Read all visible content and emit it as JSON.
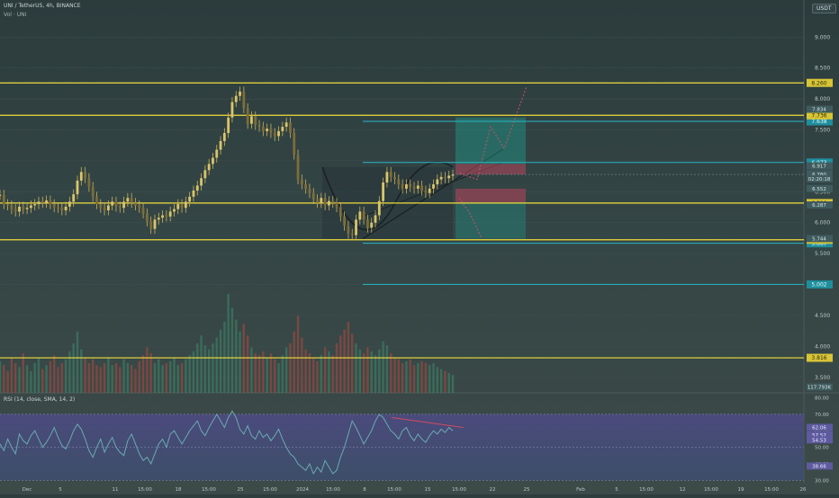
{
  "header": {
    "symbol_line": "UNI / TetherUS, 4h, BINANCE",
    "vol_line": "Vol · UNI",
    "currency_button": "USDT"
  },
  "rsi_header": "RSI (14, close, SMA, 14, 2)",
  "colors": {
    "background": "#2e3e3e",
    "price_level": "#f1de3c",
    "target_level": "#29b7c8",
    "candle": "#c8b25c",
    "rsi_line": "#6aaab0",
    "rsi_band": "#5a4f8e"
  },
  "chart_data": {
    "type": "candlestick",
    "y_axis": [
      "9.000",
      "8.500",
      "8.000",
      "7.500",
      "7.000",
      "6.500",
      "6.000",
      "5.500",
      "5.000",
      "4.500",
      "4.000",
      "3.500"
    ],
    "y_range": [
      3.25,
      9.6
    ],
    "x_ticks": [
      "Dec",
      "5",
      "11",
      "15:00",
      "18",
      "15:00",
      "25",
      "15:00",
      "2024",
      "15:00",
      "8",
      "15:00",
      "15",
      "15:00",
      "22",
      "25",
      "Feb",
      "5",
      "15:00",
      "12",
      "15:00",
      "19",
      "15:00",
      "26"
    ],
    "horizontal_levels": [
      {
        "value": 8.26,
        "label": "8.260",
        "kind": "resistance"
      },
      {
        "value": 7.736,
        "label": "7.736",
        "kind": "resistance"
      },
      {
        "value": 6.318,
        "label": "6.318",
        "kind": "support"
      },
      {
        "value": 5.724,
        "label": "5.724",
        "kind": "support"
      },
      {
        "value": 3.816,
        "label": "3.816",
        "kind": "support"
      }
    ],
    "target_levels": [
      {
        "value": 7.638,
        "label": "7.638"
      },
      {
        "value": 6.973,
        "label": "6.973"
      },
      {
        "value": 5.667,
        "label": "5.667"
      },
      {
        "value": 5.002,
        "label": "5.002"
      }
    ],
    "price_labels": [
      {
        "value": 7.834,
        "label": "7.834"
      },
      {
        "value": 6.917,
        "label": "6.917"
      },
      {
        "value": 6.791,
        "label": "6.791"
      },
      {
        "value": 6.78,
        "label": "6.780"
      },
      {
        "value": 6.71,
        "label": "02:20:18"
      },
      {
        "value": 6.552,
        "label": "6.552"
      },
      {
        "value": 6.287,
        "label": "6.287"
      },
      {
        "value": 5.744,
        "label": "5.744"
      },
      {
        "value": 3.345,
        "label": "117.793K"
      }
    ],
    "price_series": [
      6.45,
      6.3,
      6.28,
      6.22,
      6.18,
      6.26,
      6.22,
      6.24,
      6.28,
      6.3,
      6.34,
      6.32,
      6.36,
      6.3,
      6.25,
      6.24,
      6.2,
      6.26,
      6.34,
      6.46,
      6.68,
      6.82,
      6.72,
      6.58,
      6.42,
      6.3,
      6.24,
      6.2,
      6.28,
      6.34,
      6.26,
      6.24,
      6.34,
      6.4,
      6.32,
      6.28,
      6.24,
      6.15,
      6.02,
      5.9,
      6.05,
      6.08,
      6.12,
      6.1,
      6.18,
      6.22,
      6.3,
      6.24,
      6.34,
      6.42,
      6.52,
      6.6,
      6.72,
      6.85,
      6.95,
      7.05,
      7.18,
      7.32,
      7.45,
      7.7,
      7.95,
      8.05,
      8.12,
      7.85,
      7.6,
      7.72,
      7.58,
      7.55,
      7.48,
      7.52,
      7.45,
      7.4,
      7.48,
      7.55,
      7.62,
      7.45,
      7.1,
      6.7,
      6.62,
      6.55,
      6.48,
      6.38,
      6.32,
      6.4,
      6.28,
      6.35,
      6.32,
      6.25,
      6.1,
      5.95,
      5.82,
      5.8,
      6.05,
      6.18,
      6.05,
      5.92,
      6.0,
      6.12,
      6.35,
      6.65,
      6.82,
      6.74,
      6.7,
      6.62,
      6.55,
      6.62,
      6.58,
      6.55,
      6.6,
      6.52,
      6.48,
      6.55,
      6.62,
      6.7,
      6.74,
      6.72,
      6.76,
      6.78
    ],
    "volume": [
      0.32,
      0.28,
      0.22,
      0.35,
      0.3,
      0.26,
      0.4,
      0.28,
      0.22,
      0.3,
      0.36,
      0.24,
      0.28,
      0.32,
      0.38,
      0.26,
      0.3,
      0.34,
      0.42,
      0.5,
      0.62,
      0.44,
      0.36,
      0.3,
      0.34,
      0.28,
      0.26,
      0.3,
      0.36,
      0.28,
      0.3,
      0.26,
      0.34,
      0.3,
      0.28,
      0.24,
      0.32,
      0.38,
      0.46,
      0.4,
      0.3,
      0.34,
      0.28,
      0.3,
      0.32,
      0.36,
      0.28,
      0.3,
      0.34,
      0.38,
      0.42,
      0.5,
      0.58,
      0.48,
      0.44,
      0.5,
      0.56,
      0.64,
      0.72,
      1.0,
      0.86,
      0.74,
      0.62,
      0.7,
      0.58,
      0.46,
      0.4,
      0.38,
      0.42,
      0.36,
      0.4,
      0.34,
      0.3,
      0.38,
      0.46,
      0.5,
      0.62,
      0.78,
      0.56,
      0.44,
      0.4,
      0.36,
      0.32,
      0.38,
      0.46,
      0.42,
      0.38,
      0.5,
      0.58,
      0.64,
      0.72,
      0.6,
      0.5,
      0.44,
      0.4,
      0.46,
      0.42,
      0.38,
      0.44,
      0.52,
      0.48,
      0.4,
      0.36,
      0.34,
      0.3,
      0.32,
      0.34,
      0.28,
      0.3,
      0.32,
      0.3,
      0.28,
      0.3,
      0.26,
      0.24,
      0.22,
      0.2,
      0.18
    ],
    "rsi": {
      "y_axis": [
        "80.00",
        "70.00",
        "60.00",
        "50.00",
        "40.00",
        "30.00"
      ],
      "y_range": [
        28,
        83
      ],
      "band": [
        30,
        70
      ],
      "labels": [
        {
          "value": 62.06,
          "label": "62.06"
        },
        {
          "value": 57.52,
          "label": "57.52"
        },
        {
          "value": 54.53,
          "label": "54.53"
        },
        {
          "value": 38.66,
          "label": "38.66"
        }
      ],
      "series": [
        52,
        48,
        55,
        50,
        46,
        58,
        54,
        52,
        57,
        60,
        55,
        50,
        53,
        57,
        62,
        56,
        51,
        49,
        54,
        60,
        64,
        61,
        55,
        48,
        44,
        50,
        55,
        47,
        52,
        56,
        50,
        47,
        45,
        54,
        58,
        52,
        46,
        42,
        44,
        40,
        46,
        52,
        55,
        50,
        58,
        60,
        56,
        52,
        56,
        60,
        63,
        66,
        60,
        57,
        62,
        66,
        70,
        66,
        62,
        68,
        72,
        68,
        61,
        58,
        63,
        57,
        55,
        60,
        56,
        58,
        54,
        57,
        61,
        55,
        50,
        46,
        44,
        40,
        38,
        36,
        40,
        34,
        38,
        35,
        42,
        38,
        34,
        36,
        44,
        50,
        58,
        66,
        62,
        57,
        52,
        56,
        60,
        66,
        70,
        68,
        64,
        60,
        58,
        55,
        60,
        62,
        57,
        54,
        58,
        55,
        53,
        57,
        60,
        58,
        61,
        59,
        62,
        60
      ],
      "divergence_label": ""
    }
  }
}
